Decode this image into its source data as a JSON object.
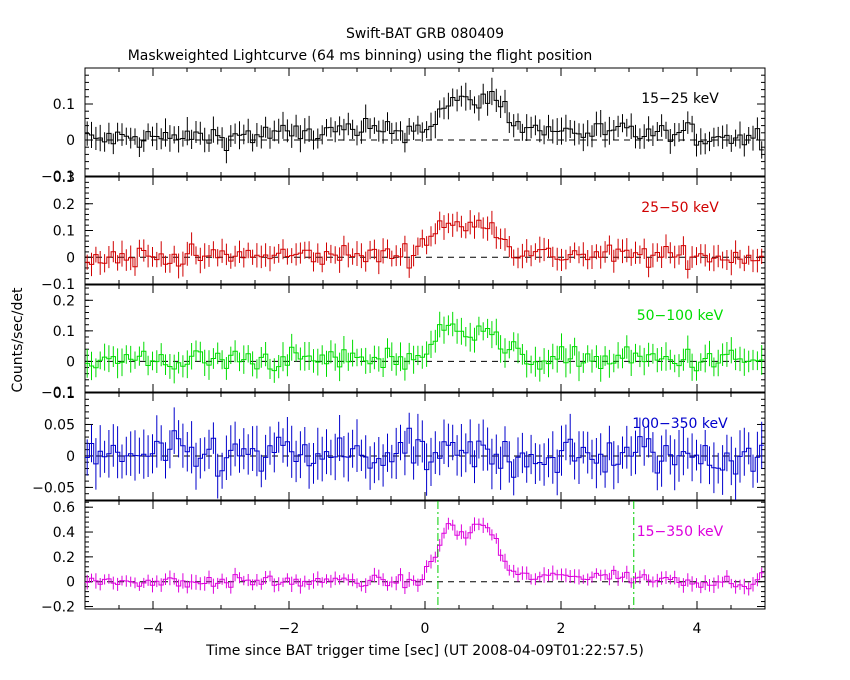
{
  "chart_data": {
    "type": "line",
    "title": "Swift-BAT GRB 080409",
    "subtitle": "Maskweighted Lightcurve (64 ms binning) using the flight position",
    "xlabel": "Time since BAT trigger time [sec] (UT 2008-04-09T01:22:57.5)",
    "ylabel": "Counts/sec/det",
    "xlim": [
      -5,
      5
    ],
    "x_ticks": [
      -4,
      -2,
      0,
      2,
      4
    ],
    "x_tick_labels": [
      "−4",
      "−2",
      "0",
      "2",
      "4"
    ],
    "bin_width": 0.064,
    "t90_markers": [
      0.19,
      3.07
    ],
    "panels": [
      {
        "name": "15−25 keV",
        "color": "#000000",
        "ylim": [
          -0.1,
          0.2
        ],
        "y_ticks": [
          -0.1,
          0,
          0.1
        ],
        "y_tick_labels": [
          "−0.1",
          "0",
          "0.1"
        ],
        "profile": {
          "base": 0.03,
          "noise": 0.028,
          "pulses": [
            [
              0.4,
              0.28,
              0.07
            ],
            [
              0.95,
              0.33,
              0.09
            ]
          ]
        }
      },
      {
        "name": "25−50 keV",
        "color": "#d00000",
        "ylim": [
          -0.1,
          0.3
        ],
        "y_ticks": [
          -0.1,
          0,
          0.1,
          0.2,
          0.3
        ],
        "y_tick_labels": [
          "−0.1",
          "0",
          "0.1",
          "0.2",
          "0.3"
        ],
        "profile": {
          "base": 0.01,
          "noise": 0.035,
          "pulses": [
            [
              0.3,
              0.3,
              0.12
            ],
            [
              0.9,
              0.3,
              0.13
            ]
          ]
        }
      },
      {
        "name": "50−100 keV",
        "color": "#00dd00",
        "ylim": [
          -0.1,
          0.25
        ],
        "y_ticks": [
          -0.1,
          0,
          0.1,
          0.2
        ],
        "y_tick_labels": [
          "−0.1",
          "0",
          "0.1",
          "0.2"
        ],
        "profile": {
          "base": 0.01,
          "noise": 0.035,
          "pulses": [
            [
              0.35,
              0.3,
              0.09
            ],
            [
              0.85,
              0.3,
              0.1
            ]
          ]
        }
      },
      {
        "name": "100−350 keV",
        "color": "#0000cc",
        "ylim": [
          -0.07,
          0.1
        ],
        "y_ticks": [
          -0.05,
          0,
          0.05,
          0.1
        ],
        "y_tick_labels": [
          "−0.05",
          "0",
          "0.05",
          "0.1"
        ],
        "profile": {
          "base": 0.0,
          "noise": 0.03,
          "pulses": []
        }
      },
      {
        "name": "15−350 keV",
        "color": "#dd00dd",
        "ylim": [
          -0.22,
          0.65
        ],
        "y_ticks": [
          -0.2,
          0,
          0.2,
          0.4,
          0.6
        ],
        "y_tick_labels": [
          "−0.2",
          "0",
          "0.2",
          "0.4",
          "0.6"
        ],
        "profile": {
          "base": 0.0,
          "noise": 0.045,
          "pulses": [
            [
              0.35,
              0.25,
              0.4
            ],
            [
              0.85,
              0.3,
              0.45
            ],
            [
              2.3,
              1.2,
              0.05
            ]
          ]
        }
      }
    ]
  }
}
